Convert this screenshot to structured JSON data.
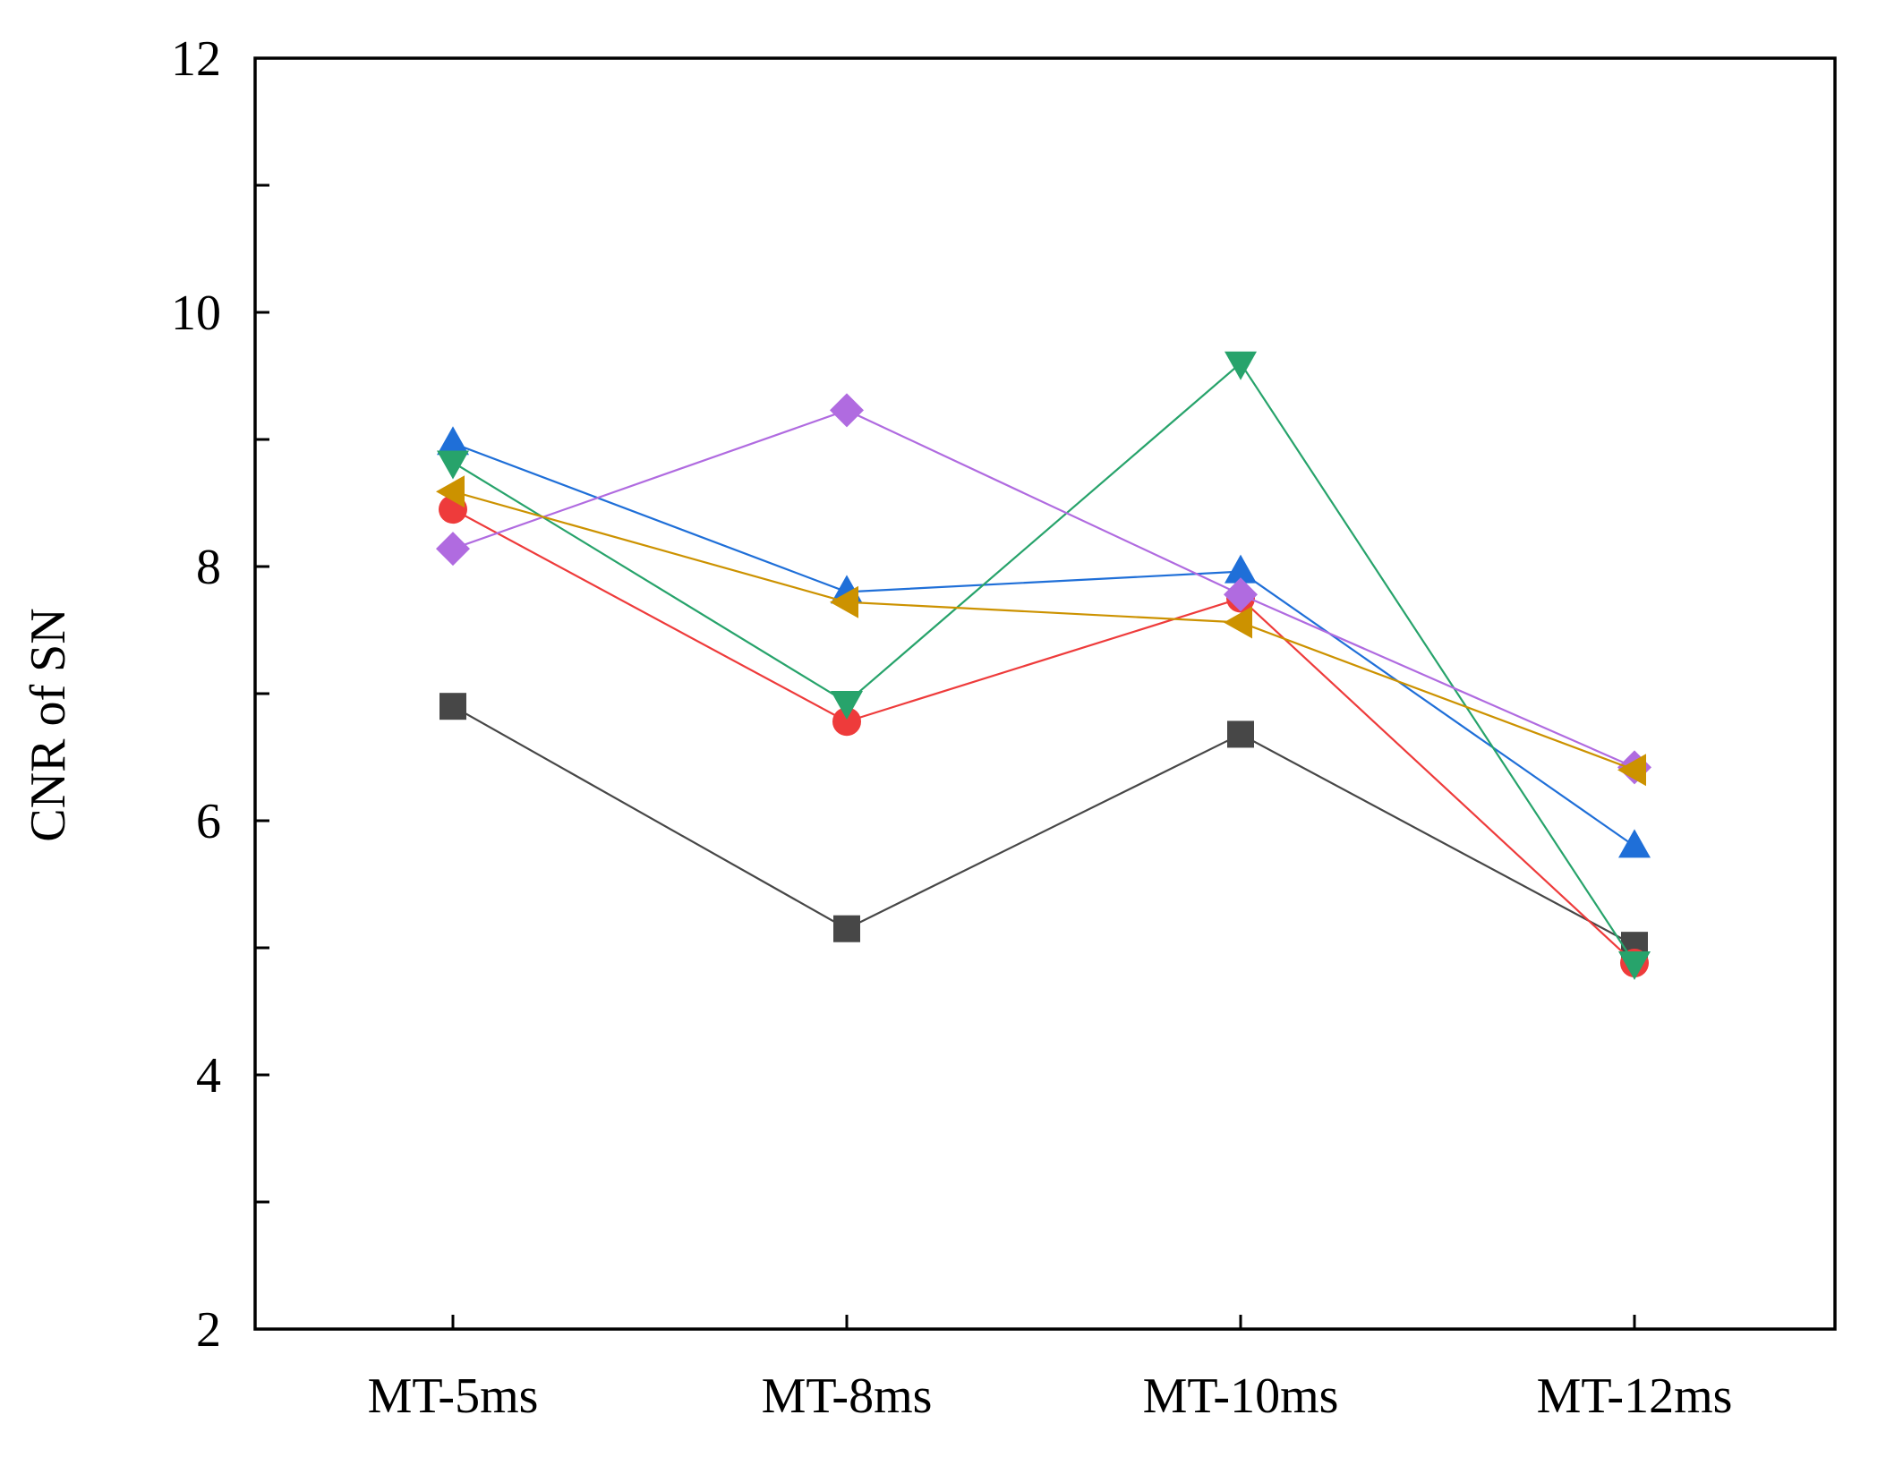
{
  "chart_data": {
    "type": "line",
    "title": "",
    "xlabel": "",
    "ylabel": "CNR of SN",
    "categories": [
      "MT-5ms",
      "MT-8ms",
      "MT-10ms",
      "MT-12ms"
    ],
    "ylim": [
      2,
      12
    ],
    "yticks": [
      2,
      4,
      6,
      8,
      10,
      12
    ],
    "y_minor_ticks": [
      3,
      5,
      7,
      9,
      11
    ],
    "grid": false,
    "legend": "none",
    "series": [
      {
        "marker": "square",
        "color": "#474747",
        "values": [
          6.9,
          5.15,
          6.68,
          5.02
        ]
      },
      {
        "marker": "circle",
        "color": "#ee3b3b",
        "values": [
          8.45,
          6.78,
          7.75,
          4.88
        ]
      },
      {
        "marker": "triangle-up",
        "color": "#1f6fd8",
        "values": [
          8.97,
          7.8,
          7.96,
          5.8
        ]
      },
      {
        "marker": "triangle-down",
        "color": "#27a36b",
        "values": [
          8.82,
          6.93,
          9.6,
          4.88
        ]
      },
      {
        "marker": "diamond",
        "color": "#b06be0",
        "values": [
          8.14,
          9.23,
          7.78,
          6.42
        ]
      },
      {
        "marker": "triangle-left",
        "color": "#cc9200",
        "values": [
          8.59,
          7.72,
          7.56,
          6.4
        ]
      }
    ]
  }
}
